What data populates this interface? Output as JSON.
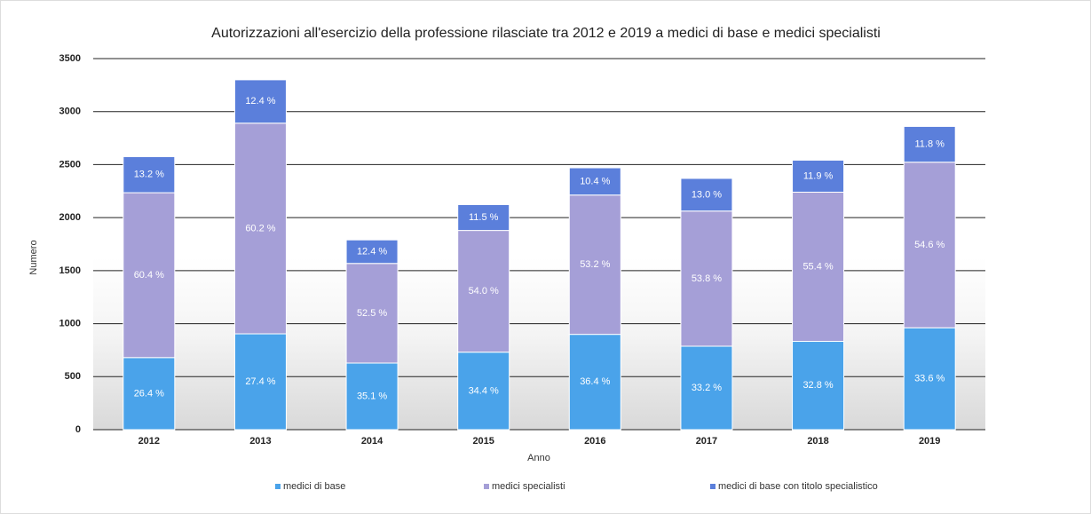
{
  "chart_data": {
    "type": "stacked_bar",
    "title": "Autorizzazioni all'esercizio della professione rilasciate tra 2012 e 2019 a medici di base e medici specialisti",
    "x_label": "Anno",
    "y_label": "Numero",
    "categories": [
      "2012",
      "2013",
      "2014",
      "2015",
      "2016",
      "2017",
      "2018",
      "2019"
    ],
    "series": [
      {
        "name": "medici di base",
        "color": "#4aa3ea",
        "values": [
          680,
          904,
          628,
          731,
          899,
          787,
          833,
          961
        ],
        "segment_labels": [
          "26.4 %",
          "27.4 %",
          "35.1 %",
          "34.4 %",
          "36.4 %",
          "33.2 %",
          "32.8 %",
          "33.6 %"
        ]
      },
      {
        "name": "medici specialisti",
        "color": "#a59fd7",
        "values": [
          1555,
          1987,
          940,
          1148,
          1314,
          1275,
          1407,
          1562
        ],
        "segment_labels": [
          "60.4 %",
          "60.2 %",
          "52.5 %",
          "54.0 %",
          "53.2 %",
          "53.8 %",
          "55.4 %",
          "54.6 %"
        ]
      },
      {
        "name": "medici di base con titolo specialistico",
        "color": "#5b7fdb",
        "values": [
          340,
          409,
          222,
          244,
          257,
          308,
          302,
          337
        ],
        "segment_labels": [
          "13.2 %",
          "12.4 %",
          "12.4 %",
          "11.5 %",
          "10.4 %",
          "13.0 %",
          "11.9 %",
          "11.8 %"
        ]
      }
    ],
    "ylim": [
      0,
      3500
    ],
    "yticks": [
      0,
      500,
      1000,
      1500,
      2000,
      2500,
      3000,
      3500
    ],
    "grid": true,
    "legend": "bottom"
  }
}
